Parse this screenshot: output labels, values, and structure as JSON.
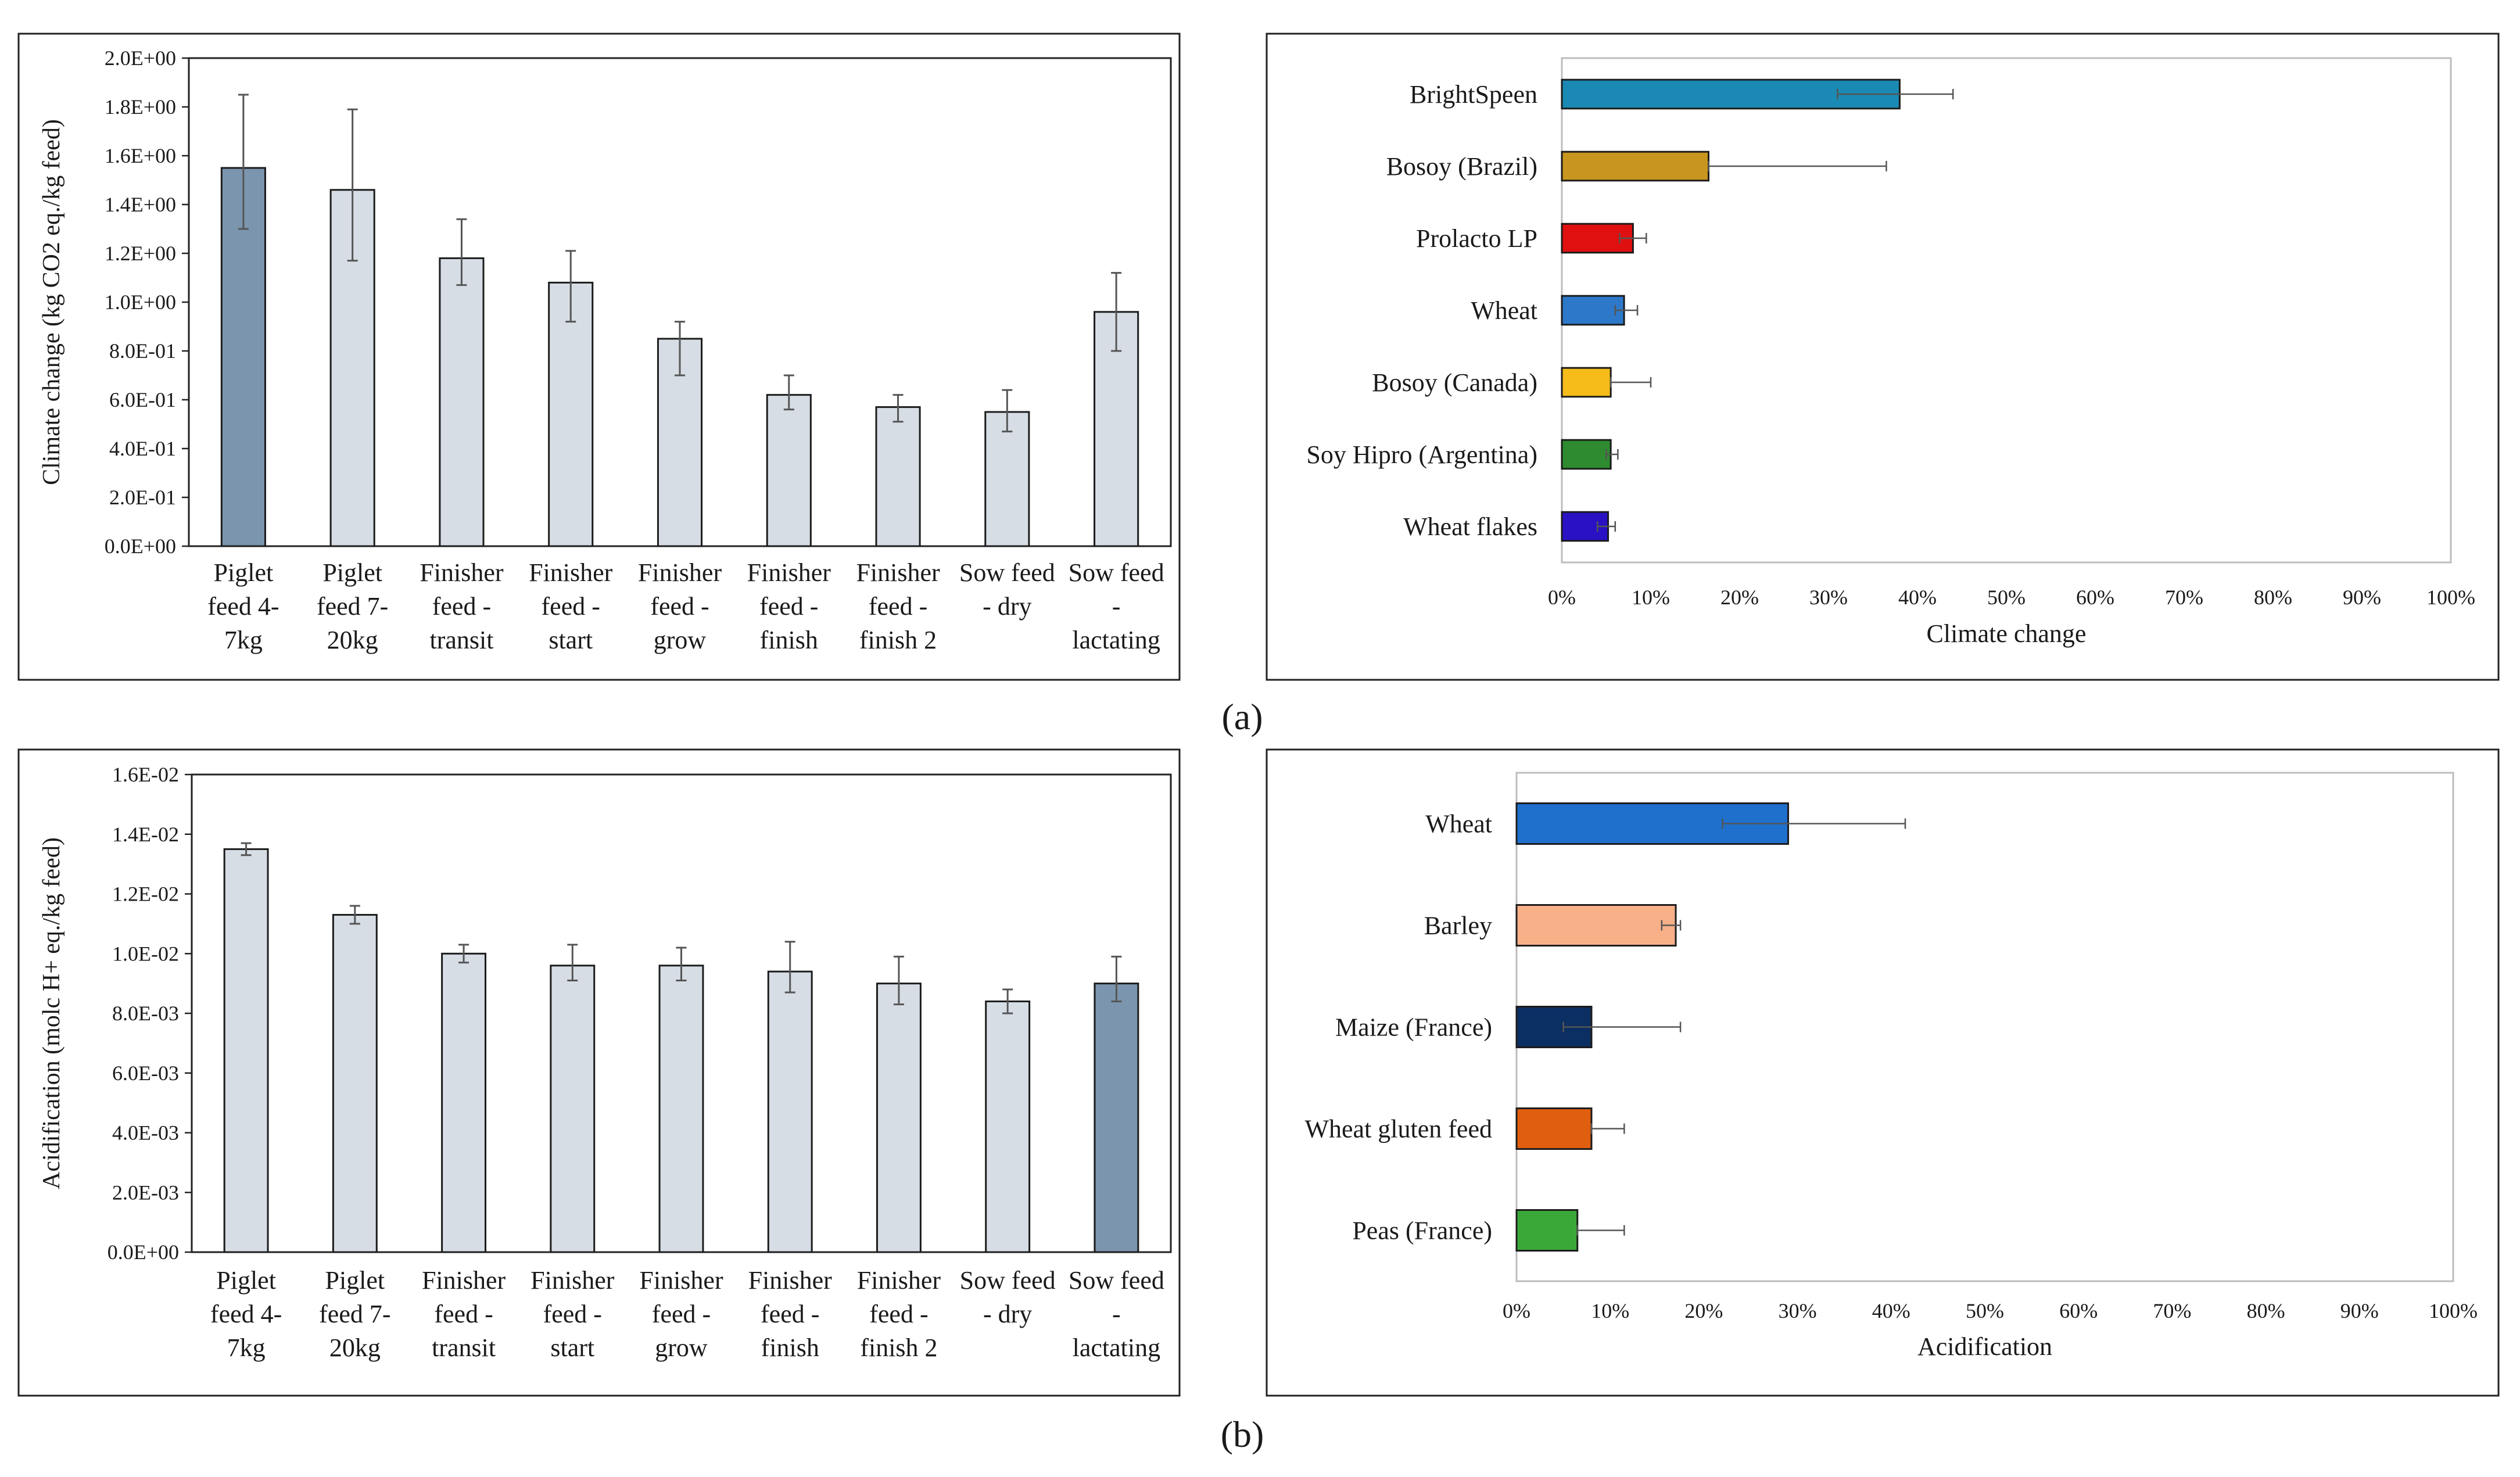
{
  "panels": [
    {
      "label": "(a)"
    },
    {
      "label": "(b)"
    }
  ],
  "chart_data": [
    {
      "id": "a-left",
      "type": "bar",
      "orientation": "vertical",
      "ylabel": "Climate change (kg CO2 eq./kg feed)",
      "xlabel": "",
      "ylim": [
        0,
        2.0
      ],
      "yticks": [
        0,
        0.2,
        0.4,
        0.6,
        0.8,
        1.0,
        1.2,
        1.4,
        1.6,
        1.8,
        2.0
      ],
      "ytick_labels": [
        "0.0E+00",
        "2.0E-01",
        "4.0E-01",
        "6.0E-01",
        "8.0E-01",
        "1.0E+00",
        "1.2E+00",
        "1.4E+00",
        "1.6E+00",
        "1.8E+00",
        "2.0E+00"
      ],
      "categories": [
        [
          "Piglet",
          "feed 4-",
          "7kg"
        ],
        [
          "Piglet",
          "feed 7-",
          "20kg"
        ],
        [
          "Finisher",
          "feed  -",
          "transit"
        ],
        [
          "Finisher",
          "feed -",
          "start"
        ],
        [
          "Finisher",
          "feed  -",
          "grow"
        ],
        [
          "Finisher",
          "feed -",
          "finish"
        ],
        [
          "Finisher",
          "feed -",
          "finish 2"
        ],
        [
          "Sow feed",
          "- dry",
          ""
        ],
        [
          "Sow feed",
          "-",
          "lactating"
        ]
      ],
      "values": [
        1.55,
        1.46,
        1.18,
        1.08,
        0.85,
        0.62,
        0.57,
        0.55,
        0.96
      ],
      "err_low": [
        1.3,
        1.17,
        1.07,
        0.92,
        0.7,
        0.56,
        0.51,
        0.47,
        0.8
      ],
      "err_high": [
        1.85,
        1.79,
        1.34,
        1.21,
        0.92,
        0.7,
        0.62,
        0.64,
        1.12
      ],
      "highlight_index": 0,
      "bar_color": "#d6dde5",
      "highlight_color": "#7b95ae",
      "grid": false
    },
    {
      "id": "a-right",
      "type": "bar",
      "orientation": "horizontal",
      "xlabel": "Climate change",
      "ylabel": "",
      "xlim": [
        0,
        100
      ],
      "xtick_labels": [
        "0%",
        "10%",
        "20%",
        "30%",
        "40%",
        "50%",
        "60%",
        "70%",
        "80%",
        "90%",
        "100%"
      ],
      "categories": [
        "BrightSpeen",
        "Bosoy (Brazil)",
        "Prolacto LP",
        "Wheat",
        "Bosoy (Canada)",
        "Soy Hipro (Argentina)",
        "Wheat flakes"
      ],
      "values": [
        38,
        16.5,
        8,
        7,
        5.5,
        5.5,
        5.2
      ],
      "err_low": [
        31,
        16.5,
        6.5,
        6,
        5.5,
        5,
        4
      ],
      "err_high": [
        44,
        36.5,
        9.5,
        8.5,
        10,
        6.3,
        6
      ],
      "colors": [
        "#1a8ab4",
        "#c8961e",
        "#e01010",
        "#2d78c8",
        "#f5bc1a",
        "#2e8b30",
        "#2a12c4"
      ],
      "grid": false
    },
    {
      "id": "b-left",
      "type": "bar",
      "orientation": "vertical",
      "ylabel": "Acidification (molc H+ eq./kg feed)",
      "xlabel": "",
      "ylim": [
        0,
        0.016
      ],
      "yticks": [
        0,
        0.002,
        0.004,
        0.006,
        0.008,
        0.01,
        0.012,
        0.014,
        0.016
      ],
      "ytick_labels": [
        "0.0E+00",
        "2.0E-03",
        "4.0E-03",
        "6.0E-03",
        "8.0E-03",
        "1.0E-02",
        "1.2E-02",
        "1.4E-02",
        "1.6E-02"
      ],
      "categories": [
        [
          "Piglet",
          "feed 4-",
          "7kg"
        ],
        [
          "Piglet",
          "feed 7-",
          "20kg"
        ],
        [
          "Finisher",
          "feed -",
          "transit"
        ],
        [
          "Finisher",
          "feed -",
          "start"
        ],
        [
          "Finisher",
          "feed  -",
          "grow"
        ],
        [
          "Finisher",
          "feed -",
          "finish"
        ],
        [
          "Finisher",
          "feed -",
          "finish 2"
        ],
        [
          "Sow feed",
          "- dry",
          ""
        ],
        [
          "Sow feed",
          "-",
          "lactating"
        ]
      ],
      "values": [
        0.0135,
        0.0113,
        0.01,
        0.0096,
        0.0096,
        0.0094,
        0.009,
        0.0084,
        0.009
      ],
      "err_low": [
        0.0133,
        0.011,
        0.0097,
        0.0091,
        0.0091,
        0.0087,
        0.0083,
        0.008,
        0.0084
      ],
      "err_high": [
        0.0137,
        0.0116,
        0.0103,
        0.0103,
        0.0102,
        0.0104,
        0.0099,
        0.0088,
        0.0099
      ],
      "highlight_index": 8,
      "bar_color": "#d6dde5",
      "highlight_color": "#7b95ae",
      "grid": false
    },
    {
      "id": "b-right",
      "type": "bar",
      "orientation": "horizontal",
      "xlabel": "Acidification",
      "ylabel": "",
      "xlim": [
        0,
        100
      ],
      "xtick_labels": [
        "0%",
        "10%",
        "20%",
        "30%",
        "40%",
        "50%",
        "60%",
        "70%",
        "80%",
        "90%",
        "100%"
      ],
      "categories": [
        "Wheat",
        "Barley",
        "Maize (France)",
        "Wheat gluten feed",
        "Peas (France)"
      ],
      "values": [
        29,
        17,
        8,
        8,
        6.5
      ],
      "err_low": [
        22,
        15.5,
        5,
        8,
        6.5
      ],
      "err_high": [
        41.5,
        17.5,
        17.5,
        11.5,
        11.5
      ],
      "colors": [
        "#1f6fcc",
        "#f8b088",
        "#0b2f62",
        "#e05e10",
        "#3aa838"
      ],
      "grid": false
    }
  ]
}
